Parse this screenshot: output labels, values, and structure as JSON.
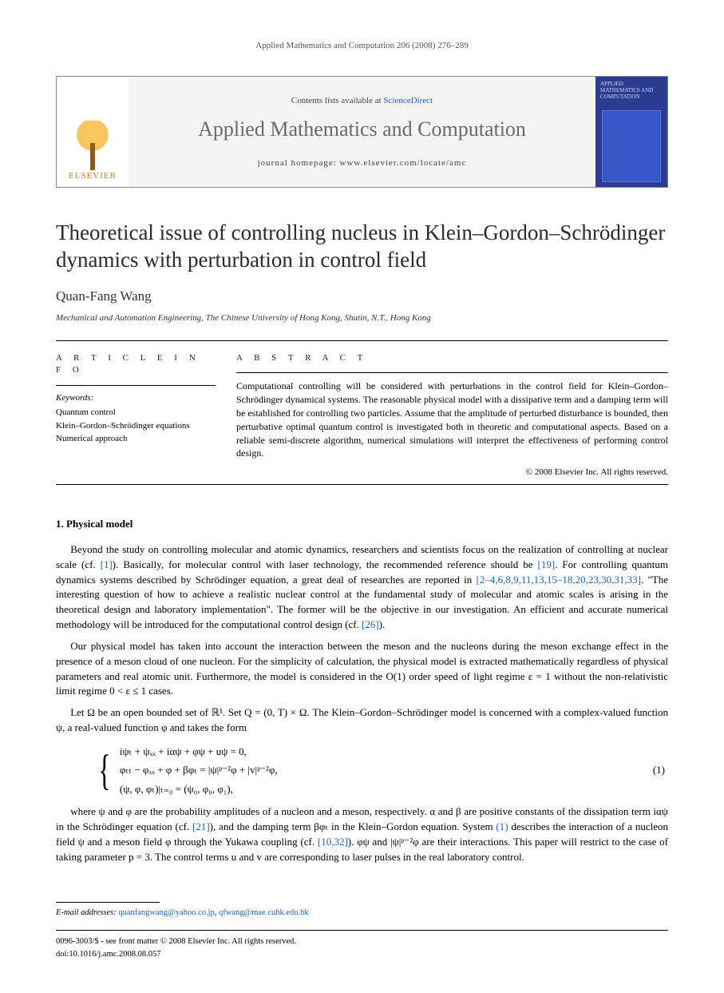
{
  "running_header": "Applied Mathematics and Computation 206 (2008) 276–289",
  "masthead": {
    "publisher": "ELSEVIER",
    "contents_prefix": "Contents lists available at ",
    "contents_link": "ScienceDirect",
    "journal_name": "Applied Mathematics and Computation",
    "homepage_label": "journal homepage: www.elsevier.com/locate/amc",
    "cover_label": "APPLIED MATHEMATICS AND COMPUTATION"
  },
  "title": "Theoretical issue of controlling nucleus in Klein–Gordon–Schrödinger dynamics with perturbation in control field",
  "author": "Quan-Fang Wang",
  "affiliation": "Mechanical and Automation Engineering, The Chinese University of Hong Kong, Shatin, N.T., Hong Kong",
  "info": {
    "head": "A R T I C L E   I N F O",
    "keywords_label": "Keywords:",
    "keywords": [
      "Quantum control",
      "Klein–Gordon–Schrödinger equations",
      "Numerical approach"
    ]
  },
  "abstract": {
    "head": "A B S T R A C T",
    "body": "Computational controlling will be considered with perturbations in the control field for Klein–Gordon–Schrödinger dynamical systems. The reasonable physical model with a dissipative term and a damping term will be established for controlling two particles. Assume that the amplitude of perturbed disturbance is bounded, then perturbative optimal quantum control is investigated both in theoretic and computational aspects. Based on a reliable semi-discrete algorithm, numerical simulations will interpret the effectiveness of performing control design.",
    "copyright": "© 2008 Elsevier Inc. All rights reserved."
  },
  "section1": {
    "heading": "1. Physical model",
    "p1a": "Beyond the study on controlling molecular and atomic dynamics, researchers and scientists focus on the realization of controlling at nuclear scale (cf. ",
    "r1": "[1]",
    "p1b": "). Basically, for molecular control with laser technology, the recommended reference should be ",
    "r19": "[19]",
    "p1c": ". For controlling quantum dynamics systems described by Schrödinger equation, a great deal of researches are reported in ",
    "rmany": "[2–4,6,8,9,11,13,15–18,20,23,30,31,33]",
    "p1d": ". \"The interesting question of how to achieve a realistic nuclear control at the fundamental study of molecular and atomic scales is arising in the theoretical design and laboratory implementation\". The former will be the objective in our investigation. An efficient and accurate numerical methodology will be introduced for the computational control design (cf. ",
    "r26": "[26]",
    "p1e": ").",
    "p2": "Our physical model has taken into account the interaction between the meson and the nucleons during the meson exchange effect in the presence of a meson cloud of one nucleon. For the simplicity of calculation, the physical model is extracted mathematically regardless of physical parameters and real atomic unit. Furthermore, the model is considered in the O(1) order speed of light regime ε = 1 without the non-relativistic limit regime 0 < ε ≤ 1 cases.",
    "p3": "Let Ω be an open bounded set of ℝ¹. Set Q = (0, T) × Ω. The Klein–Gordon–Schrödinger model is concerned with a complex-valued function ψ, a real-valued function φ and takes the form",
    "eq": {
      "l1": "iψₜ + ψₓₓ + iαψ + φψ + uψ = 0,",
      "l2": "φₜₜ − φₓₓ + φ + βφₜ = |ψ|ᵖ⁻²φ + |v|ᵖ⁻²φ,",
      "l3": "(ψ, φ, φₜ)|ₜ₌₀ = (ψ₀, φ₀, φ₁),",
      "num": "(1)"
    },
    "p4a": "where ψ and φ are the probability amplitudes of a nucleon and a meson, respectively. α and β are positive constants of the dissipation term iαψ in the Schrödinger equation (cf. ",
    "r21": "[21]",
    "p4b": "), and the damping term βφₜ in the Klein–Gordon equation. System ",
    "r1p": "(1)",
    "p4c": " describes the interaction of a nucleon field ψ and a meson field φ through the Yukawa coupling (cf. ",
    "r1032": "[10,32]",
    "p4d": "). φψ and |ψ|ᵖ⁻²φ are their interactions. This paper will restrict to the case of taking parameter p = 3. The control terms u and v are corresponding to laser pulses in the real laboratory control."
  },
  "footnote": {
    "label": "E-mail addresses: ",
    "e1": "quanfangwang@yahoo.co.jp",
    "sep": ", ",
    "e2": "qfwang@mae.cuhk.edu.hk"
  },
  "frontmatter": {
    "l1": "0096-3003/$ - see front matter © 2008 Elsevier Inc. All rights reserved.",
    "l2": "doi:10.1016/j.amc.2008.08.057"
  }
}
